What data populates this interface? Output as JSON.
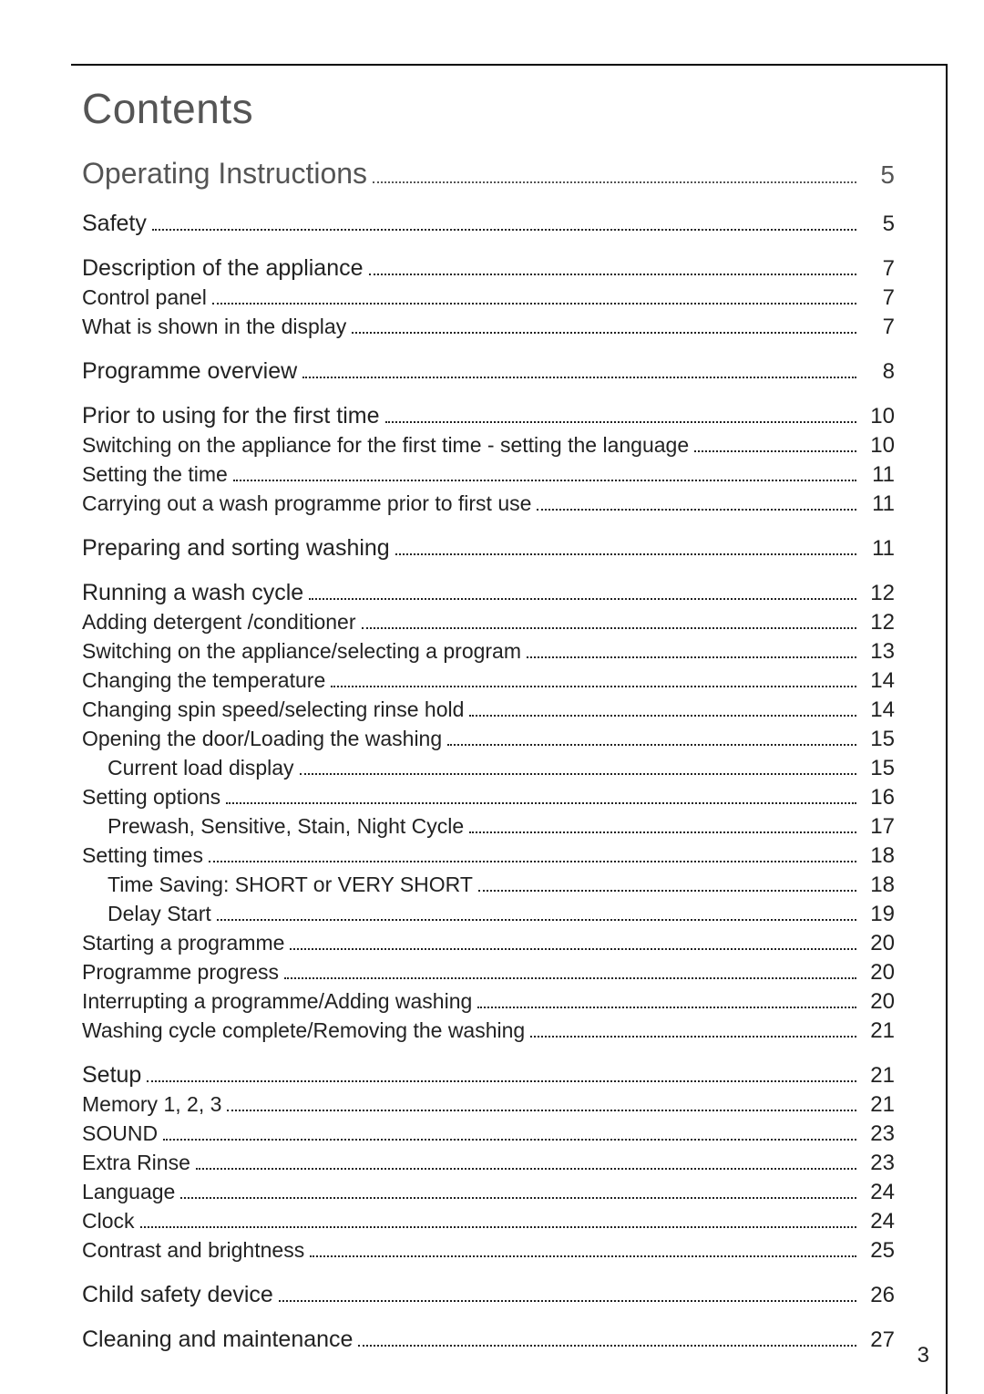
{
  "title": "Contents",
  "page_number": "3",
  "colors": {
    "background": "#ffffff",
    "text": "#222222",
    "title": "#555555",
    "rule": "#000000"
  },
  "typography": {
    "title_fontsize": 46,
    "level0_fontsize": 32,
    "level1_fontsize": 25,
    "level2_fontsize": 23,
    "font_family": "Arial, Helvetica, sans-serif"
  },
  "toc": [
    {
      "group": [
        {
          "label": "Operating Instructions",
          "page": "5",
          "level": 0
        }
      ]
    },
    {
      "group": [
        {
          "label": "Safety",
          "page": "5",
          "level": 1
        }
      ]
    },
    {
      "group": [
        {
          "label": "Description of the appliance",
          "page": "7",
          "level": 1
        },
        {
          "label": "Control panel",
          "page": "7",
          "level": 2
        },
        {
          "label": "What is shown in the display",
          "page": "7",
          "level": 2
        }
      ]
    },
    {
      "group": [
        {
          "label": "Programme overview",
          "page": "8",
          "level": 1
        }
      ]
    },
    {
      "group": [
        {
          "label": "Prior to using for the first time",
          "page": "10",
          "level": 1
        },
        {
          "label": "Switching on the appliance for the first time - setting the language",
          "page": "10",
          "level": 2
        },
        {
          "label": "Setting the time",
          "page": "11",
          "level": 2
        },
        {
          "label": "Carrying out a wash programme prior to first use",
          "page": "11",
          "level": 2
        }
      ]
    },
    {
      "group": [
        {
          "label": "Preparing and sorting washing",
          "page": "11",
          "level": 1
        }
      ]
    },
    {
      "group": [
        {
          "label": "Running a wash cycle",
          "page": "12",
          "level": 1
        },
        {
          "label": "Adding detergent /conditioner",
          "page": "12",
          "level": 2
        },
        {
          "label": "Switching on the appliance/selecting a program",
          "page": "13",
          "level": 2
        },
        {
          "label": "Changing the temperature",
          "page": "14",
          "level": 2
        },
        {
          "label": "Changing spin speed/selecting rinse hold",
          "page": "14",
          "level": 2
        },
        {
          "label": "Opening the door/Loading the washing",
          "page": "15",
          "level": 2
        },
        {
          "label": "Current load display",
          "page": "15",
          "level": 3
        },
        {
          "label": "Setting options",
          "page": "16",
          "level": 2
        },
        {
          "label": "Prewash, Sensitive, Stain, Night Cycle",
          "page": "17",
          "level": 3
        },
        {
          "label": "Setting times",
          "page": "18",
          "level": 2
        },
        {
          "label": "Time Saving: SHORT or VERY SHORT",
          "page": "18",
          "level": 3
        },
        {
          "label": "Delay Start",
          "page": "19",
          "level": 3
        },
        {
          "label": "Starting a programme",
          "page": "20",
          "level": 2
        },
        {
          "label": "Programme progress",
          "page": "20",
          "level": 2
        },
        {
          "label": "Interrupting a programme/Adding washing",
          "page": "20",
          "level": 2
        },
        {
          "label": "Washing cycle complete/Removing the washing",
          "page": "21",
          "level": 2
        }
      ]
    },
    {
      "group": [
        {
          "label": "Setup",
          "page": "21",
          "level": 1
        },
        {
          "label": "Memory 1, 2, 3",
          "page": "21",
          "level": 2
        },
        {
          "label": "SOUND",
          "page": "23",
          "level": 2
        },
        {
          "label": "Extra Rinse",
          "page": "23",
          "level": 2
        },
        {
          "label": "Language",
          "page": "24",
          "level": 2
        },
        {
          "label": "Clock",
          "page": "24",
          "level": 2
        },
        {
          "label": "Contrast and brightness",
          "page": "25",
          "level": 2
        }
      ]
    },
    {
      "group": [
        {
          "label": "Child safety device",
          "page": "26",
          "level": 1
        }
      ]
    },
    {
      "group": [
        {
          "label": "Cleaning and maintenance",
          "page": "27",
          "level": 1
        }
      ]
    }
  ]
}
